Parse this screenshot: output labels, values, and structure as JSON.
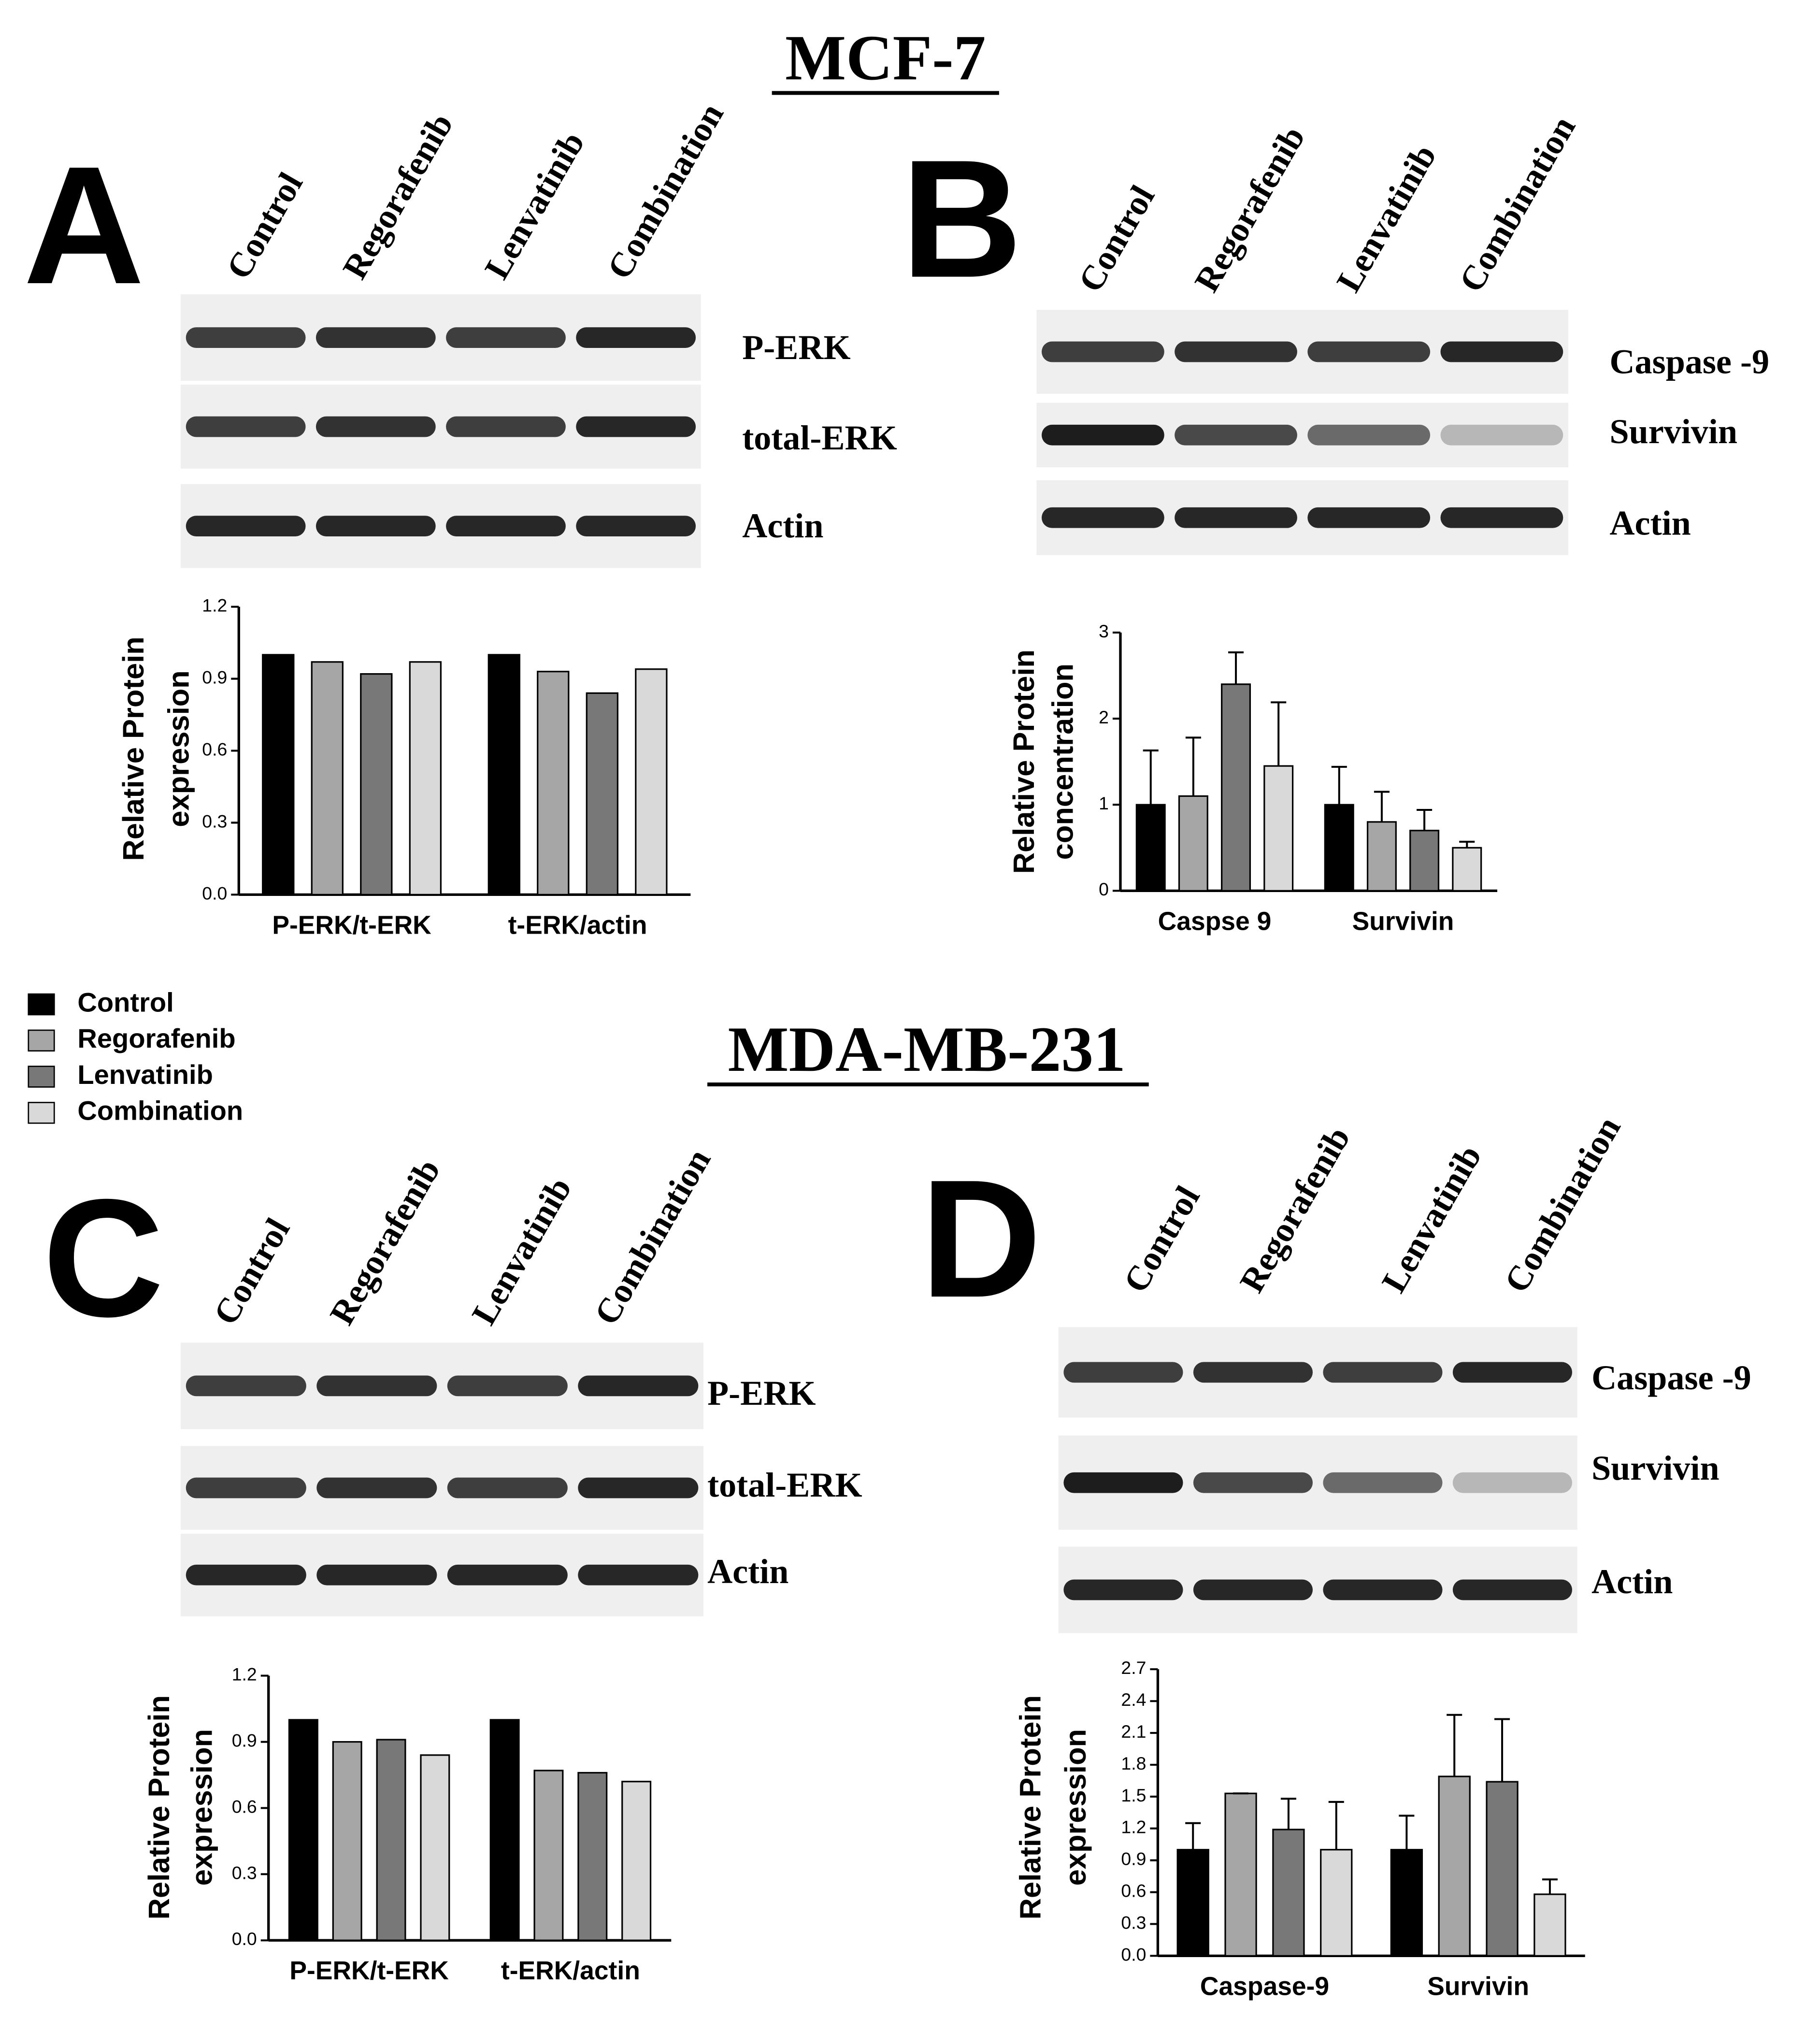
{
  "sections": [
    "MCF-7",
    "MDA-MB-231"
  ],
  "panels": [
    {
      "letter": "A",
      "lanes": [
        "Control",
        "Regorafenib",
        "Lenvatinib",
        "Combination"
      ],
      "blots": [
        "P-ERK",
        "total-ERK",
        "Actin"
      ]
    },
    {
      "letter": "B",
      "lanes": [
        "Control",
        "Regorafenib",
        "Lenvatinib",
        "Combination"
      ],
      "blots": [
        "Caspase -9",
        "Survivin",
        "Actin"
      ]
    },
    {
      "letter": "C",
      "lanes": [
        "Control",
        "Regorafenib",
        "Lenvatinib",
        "Combination"
      ],
      "blots": [
        "P-ERK",
        "total-ERK",
        "Actin"
      ]
    },
    {
      "letter": "D",
      "lanes": [
        "Control",
        "Regorafenib",
        "Lenvatinib",
        "Combination"
      ],
      "blots": [
        "Caspase -9",
        "Survivin",
        "Actin"
      ]
    }
  ],
  "chart_data": [
    {
      "type": "bar",
      "ylabel": [
        "Relative Protein",
        "expression"
      ],
      "categories": [
        "P-ERK/t-ERK",
        "t-ERK/actin"
      ],
      "ylim": [
        0,
        1.2
      ],
      "yticks": [
        {
          "value": 0,
          "label": "0.0"
        },
        0.3,
        0.6,
        0.9,
        1.2
      ],
      "series": [
        {
          "name": "Control",
          "color": "#000000",
          "values": [
            1.0,
            1.0
          ]
        },
        {
          "name": "Regorafenib",
          "color": "#a6a6a6",
          "values": [
            0.97,
            0.93
          ]
        },
        {
          "name": "Lenvatinib",
          "color": "#787878",
          "values": [
            0.92,
            0.84
          ]
        },
        {
          "name": "Combination",
          "color": "#d9d9d9",
          "values": [
            0.97,
            0.94
          ]
        }
      ]
    },
    {
      "type": "bar",
      "ylabel": [
        "Relative Protein",
        "concentration"
      ],
      "categories": [
        "Caspse 9",
        "Survivin"
      ],
      "ylim": [
        0,
        3
      ],
      "yticks": [
        0,
        1,
        2,
        3
      ],
      "series": [
        {
          "color": "#000000",
          "values": [
            1.0,
            1.0
          ],
          "errors": [
            0.63,
            0.44
          ]
        },
        {
          "color": "#a6a6a6",
          "values": [
            1.1,
            0.8
          ],
          "errors": [
            0.68,
            0.35
          ]
        },
        {
          "color": "#787878",
          "values": [
            2.4,
            0.7
          ],
          "errors": [
            0.37,
            0.24
          ]
        },
        {
          "color": "#d9d9d9",
          "values": [
            1.45,
            0.5
          ],
          "errors": [
            0.74,
            0.07
          ]
        }
      ]
    },
    {
      "type": "bar",
      "ylabel": [
        "Relative Protein",
        "expression"
      ],
      "categories": [
        "P-ERK/t-ERK",
        "t-ERK/actin"
      ],
      "ylim": [
        0,
        1.2
      ],
      "yticks": [
        {
          "value": 0,
          "label": "0.0"
        },
        0.3,
        0.6,
        0.9,
        1.2
      ],
      "series": [
        {
          "color": "#000000",
          "values": [
            1.0,
            1.0
          ]
        },
        {
          "color": "#a6a6a6",
          "values": [
            0.9,
            0.77
          ]
        },
        {
          "color": "#787878",
          "values": [
            0.91,
            0.76
          ]
        },
        {
          "color": "#d9d9d9",
          "values": [
            0.84,
            0.72
          ]
        }
      ]
    },
    {
      "type": "bar",
      "ylabel": [
        "Relative Protein",
        "expression"
      ],
      "categories": [
        "Caspase-9",
        "Survivin"
      ],
      "ylim": [
        0,
        2.7
      ],
      "yticks": [
        {
          "value": 0,
          "label": "0.0"
        },
        0.3,
        0.6,
        0.9,
        1.2,
        1.5,
        1.8,
        2.1,
        2.4,
        2.7
      ],
      "series": [
        {
          "color": "#000000",
          "values": [
            1.0,
            1.0
          ],
          "errors": [
            0.25,
            0.32
          ]
        },
        {
          "color": "#a6a6a6",
          "values": [
            1.53,
            1.69
          ],
          "errors": [
            0,
            0.58
          ]
        },
        {
          "color": "#787878",
          "values": [
            1.19,
            1.64
          ],
          "errors": [
            0.29,
            0.59
          ]
        },
        {
          "color": "#d9d9d9",
          "values": [
            1.0,
            0.58
          ],
          "errors": [
            0.45,
            0.14
          ]
        }
      ]
    }
  ]
}
